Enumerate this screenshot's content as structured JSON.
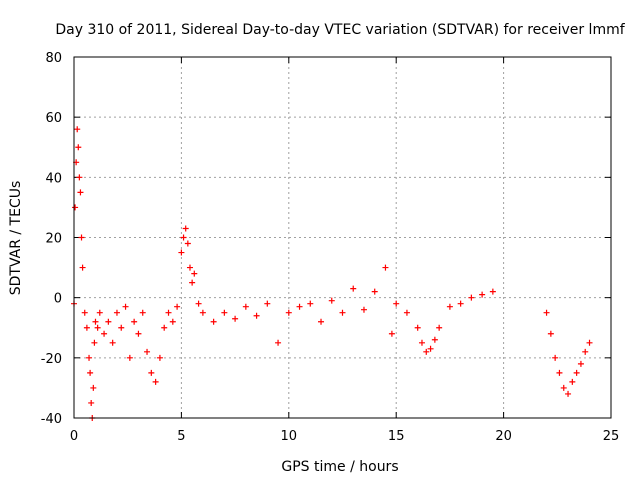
{
  "chart_data": {
    "type": "scatter",
    "title": "Day 310 of 2011, Sidereal Day-to-day VTEC variation (SDTVAR) for receiver lmmf",
    "xlabel": "GPS time / hours",
    "ylabel": "SDTVAR / TECUs",
    "xlim": [
      0,
      25
    ],
    "ylim": [
      -40,
      80
    ],
    "xticks": [
      0,
      5,
      10,
      15,
      20,
      25
    ],
    "yticks": [
      -40,
      -20,
      0,
      20,
      40,
      60,
      80
    ],
    "grid": true,
    "marker": "+",
    "color": "#ff0000",
    "series": [
      {
        "name": "SDTVAR",
        "x": [
          0.0,
          0.05,
          0.1,
          0.15,
          0.2,
          0.25,
          0.3,
          0.35,
          0.4,
          0.5,
          0.6,
          0.7,
          0.75,
          0.8,
          0.85,
          0.9,
          0.95,
          1.0,
          1.1,
          1.2,
          1.4,
          1.6,
          1.8,
          2.0,
          2.2,
          2.4,
          2.6,
          2.8,
          3.0,
          3.2,
          3.4,
          3.6,
          3.8,
          4.0,
          4.2,
          4.4,
          4.6,
          4.8,
          5.0,
          5.1,
          5.2,
          5.3,
          5.4,
          5.5,
          5.6,
          5.8,
          6.0,
          6.5,
          7.0,
          7.5,
          8.0,
          8.5,
          9.0,
          9.5,
          10.0,
          10.5,
          11.0,
          11.5,
          12.0,
          12.5,
          13.0,
          13.5,
          14.0,
          14.5,
          14.8,
          15.0,
          15.5,
          16.0,
          16.2,
          16.4,
          16.6,
          16.8,
          17.0,
          17.5,
          18.0,
          18.5,
          19.0,
          19.5,
          22.0,
          22.2,
          22.4,
          22.6,
          22.8,
          23.0,
          23.2,
          23.4,
          23.6,
          23.8,
          24.0
        ],
        "y": [
          -2,
          30,
          45,
          56,
          50,
          40,
          35,
          20,
          10,
          -5,
          -10,
          -20,
          -25,
          -35,
          -40,
          -30,
          -15,
          -8,
          -10,
          -5,
          -12,
          -8,
          -15,
          -5,
          -10,
          -3,
          -20,
          -8,
          -12,
          -5,
          -18,
          -25,
          -28,
          -20,
          -10,
          -5,
          -8,
          -3,
          15,
          20,
          23,
          18,
          10,
          5,
          8,
          -2,
          -5,
          -8,
          -5,
          -7,
          -3,
          -6,
          -2,
          -15,
          -5,
          -3,
          -2,
          -8,
          -1,
          -5,
          3,
          -4,
          2,
          10,
          -12,
          -2,
          -5,
          -10,
          -15,
          -18,
          -17,
          -14,
          -10,
          -3,
          -2,
          0,
          1,
          2,
          -5,
          -12,
          -20,
          -25,
          -30,
          -32,
          -28,
          -25,
          -22,
          -18,
          -15
        ]
      }
    ],
    "annotations": []
  }
}
